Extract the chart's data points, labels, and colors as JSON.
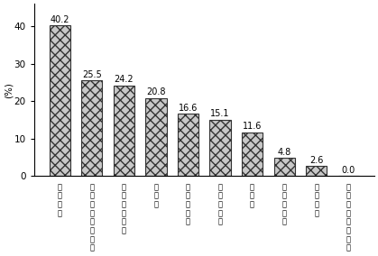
{
  "values": [
    40.2,
    25.5,
    24.2,
    20.8,
    16.6,
    15.1,
    11.6,
    4.8,
    2.6,
    0.0
  ],
  "value_labels": [
    "40.2",
    "25.5",
    "24.2",
    "20.8",
    "16.6",
    "15.1",
    "11.6",
    "4.8",
    "2.6",
    "0.0"
  ],
  "x_labels": [
    "身\n辺\n処\n理",
    "危\n配\n険\n慮\nに\n対\nす\nる",
    "作\n業\nの\n持\n続\n性",
    "協\n調\n性",
    "規\n律\nの\n導\n入",
    "時\n間\nの\n概\n念",
    "注\n意\n力",
    "挨\n拶\n・\n返\n事",
    "数\nの\n概\n念",
    "適\nそ\n応\nの\n・\n他\n理\n解"
  ],
  "ylabel": "(%)",
  "yticks": [
    0,
    10,
    20,
    30,
    40
  ],
  "ylim": [
    0,
    46
  ],
  "bar_facecolor": "#c8c8c8",
  "bar_edgecolor": "#333333",
  "hatch": "xxx",
  "background_color": "#ffffff",
  "label_fontsize": 7,
  "tick_fontsize": 7.5,
  "bar_width": 0.65
}
